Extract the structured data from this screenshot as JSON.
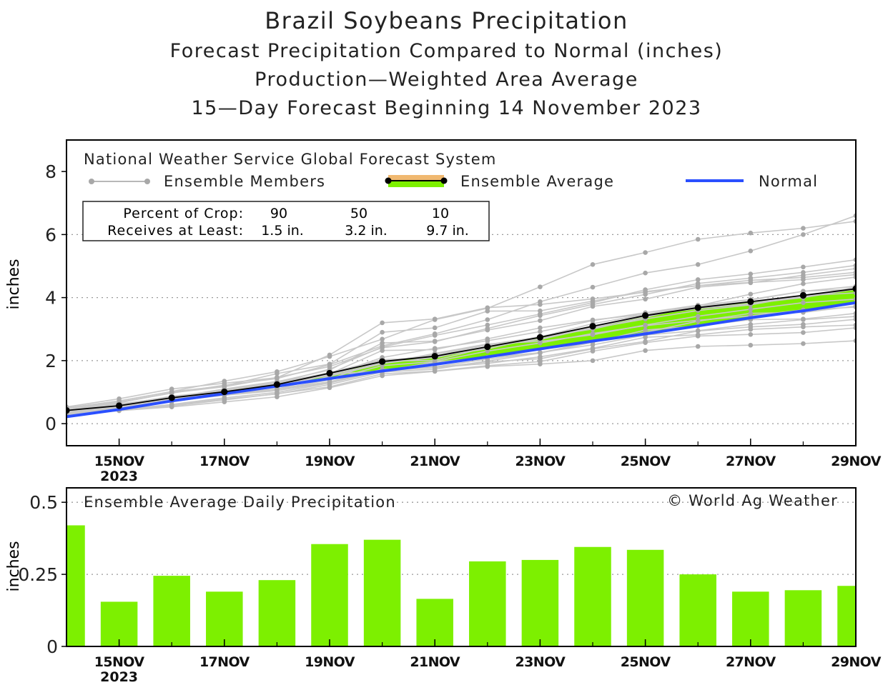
{
  "title": "Brazil Soybeans Precipitation",
  "subtitles": [
    "Forecast Precipitation Compared to Normal (inches)",
    "Production—Weighted Area Average",
    "15—Day Forecast Beginning 14 November 2023"
  ],
  "colors": {
    "member": "#c8c8c8",
    "member_point": "#a8a8a8",
    "average": "#000000",
    "normal": "#2a4fff",
    "above_normal_fill": "#7df000",
    "band": "#f0b870",
    "bar": "#7df000"
  },
  "chart_data": [
    {
      "type": "line",
      "title": "National Weather Service Global Forecast System",
      "ylabel": "inches",
      "ylim": [
        -0.7,
        9
      ],
      "yticks": [
        0,
        2,
        4,
        6,
        8
      ],
      "xlim": [
        14,
        29
      ],
      "x": [
        14,
        15,
        16,
        17,
        18,
        19,
        20,
        21,
        22,
        23,
        24,
        25,
        26,
        27,
        28,
        29
      ],
      "xticks": [
        15,
        17,
        19,
        21,
        23,
        25,
        27,
        29
      ],
      "xtick_labels": [
        "15NOV",
        "17NOV",
        "19NOV",
        "21NOV",
        "23NOV",
        "25NOV",
        "27NOV",
        "29NOV"
      ],
      "xtick_year": "2023",
      "legend": {
        "members_label": "Ensemble Members",
        "average_label": "Ensemble Average",
        "normal_label": "Normal"
      },
      "crop_box": {
        "row1_label": "Percent of Crop:",
        "row1_values": [
          "90",
          "50",
          "10"
        ],
        "row2_label": "Receives at Least:",
        "row2_values": [
          "1.5 in.",
          "3.2 in.",
          "9.7 in."
        ]
      },
      "series": [
        {
          "name": "Ensemble Average",
          "values": [
            0.42,
            0.57,
            0.82,
            1.01,
            1.24,
            1.6,
            1.97,
            2.14,
            2.44,
            2.74,
            3.09,
            3.43,
            3.68,
            3.87,
            4.07,
            4.28
          ]
        },
        {
          "name": "Normal",
          "values": [
            0.22,
            0.45,
            0.72,
            0.95,
            1.19,
            1.43,
            1.67,
            1.88,
            2.12,
            2.37,
            2.62,
            2.85,
            3.1,
            3.36,
            3.58,
            3.84
          ]
        }
      ],
      "members": [
        [
          0.45,
          0.62,
          0.85,
          1.05,
          1.29,
          1.62,
          2.03,
          2.09,
          2.45,
          2.67,
          3.07,
          3.41,
          3.69,
          3.86,
          4.0,
          4.27
        ],
        [
          0.36,
          0.61,
          0.81,
          0.99,
          1.29,
          1.6,
          1.95,
          2.2,
          2.51,
          2.75,
          3.0,
          3.37,
          3.75,
          3.94,
          4.2,
          4.27
        ],
        [
          0.45,
          0.59,
          0.87,
          1.04,
          1.26,
          1.57,
          1.98,
          2.14,
          2.37,
          2.75,
          3.17,
          3.46,
          3.66,
          3.81,
          4.0,
          4.34
        ],
        [
          0.41,
          0.59,
          0.8,
          1.06,
          1.22,
          1.55,
          1.91,
          2.1,
          2.45,
          2.69,
          3.07,
          3.45,
          3.65,
          3.8,
          4.06,
          4.26
        ],
        [
          0.38,
          0.55,
          0.82,
          1.02,
          1.27,
          1.59,
          2.0,
          2.15,
          2.5,
          2.67,
          3.04,
          3.43,
          3.73,
          3.87,
          4.02,
          4.3
        ],
        [
          0.42,
          0.58,
          0.86,
          1.05,
          1.29,
          1.73,
          2.43,
          2.8,
          3.13,
          3.48,
          3.84,
          4.25,
          4.57,
          4.75,
          4.97,
          5.2
        ],
        [
          0.48,
          0.68,
          0.97,
          1.22,
          1.43,
          1.87,
          2.47,
          2.85,
          3.3,
          3.87,
          4.33,
          4.78,
          5.05,
          5.48,
          6.0,
          6.6
        ],
        [
          0.5,
          0.72,
          1.02,
          1.35,
          1.65,
          2.13,
          2.68,
          3.3,
          3.66,
          4.34,
          5.05,
          5.43,
          5.85,
          6.05,
          6.2,
          6.42
        ],
        [
          0.44,
          0.66,
          0.98,
          1.17,
          1.47,
          1.81,
          2.41,
          2.6,
          3.02,
          3.43,
          3.78,
          4.1,
          4.45,
          4.62,
          4.8,
          5.02
        ],
        [
          0.53,
          0.79,
          1.1,
          1.28,
          1.46,
          2.18,
          3.2,
          3.32,
          3.68,
          3.78,
          3.96,
          4.17,
          4.38,
          4.48,
          4.57,
          4.73
        ],
        [
          0.5,
          0.72,
          1.01,
          1.2,
          1.59,
          1.89,
          2.9,
          3.04,
          3.57,
          3.58,
          3.89,
          4.19,
          4.38,
          4.55,
          4.64,
          4.8
        ],
        [
          0.44,
          0.61,
          0.83,
          1.1,
          1.34,
          1.58,
          2.32,
          2.35,
          2.69,
          3.04,
          3.29,
          3.47,
          3.74,
          4.11,
          4.44,
          4.65
        ],
        [
          0.43,
          0.63,
          0.81,
          1.07,
          1.33,
          1.7,
          2.56,
          2.62,
          2.97,
          3.27,
          3.72,
          3.95,
          4.33,
          4.47,
          4.71,
          4.92
        ],
        [
          0.4,
          0.57,
          0.75,
          1.02,
          1.25,
          1.53,
          2.1,
          2.39,
          2.63,
          2.92,
          3.27,
          3.52,
          3.76,
          3.92,
          4.2,
          4.36
        ],
        [
          0.36,
          0.52,
          0.73,
          1.02,
          1.16,
          1.42,
          1.98,
          2.01,
          2.42,
          2.77,
          3.03,
          3.32,
          3.59,
          3.77,
          4.06,
          4.15
        ],
        [
          0.39,
          0.55,
          0.77,
          0.95,
          1.09,
          1.39,
          1.84,
          1.97,
          2.3,
          2.56,
          2.86,
          3.11,
          3.28,
          3.42,
          3.61,
          3.7
        ],
        [
          0.39,
          0.51,
          0.79,
          0.98,
          1.15,
          1.56,
          1.68,
          1.95,
          2.11,
          2.25,
          2.6,
          2.9,
          3.25,
          3.5,
          3.53,
          3.73
        ],
        [
          0.33,
          0.5,
          0.72,
          0.9,
          1.05,
          1.31,
          1.7,
          1.8,
          2.05,
          2.26,
          2.5,
          2.81,
          2.95,
          3.15,
          3.3,
          3.4
        ],
        [
          0.37,
          0.49,
          0.7,
          0.92,
          1.09,
          1.33,
          1.72,
          1.78,
          1.96,
          2.06,
          2.37,
          2.61,
          2.94,
          3.07,
          3.15,
          3.31
        ],
        [
          0.33,
          0.44,
          0.61,
          0.82,
          0.99,
          1.29,
          1.68,
          1.78,
          1.91,
          2.12,
          2.39,
          2.74,
          2.82,
          2.99,
          3.07,
          3.13
        ],
        [
          0.31,
          0.45,
          0.56,
          0.75,
          0.95,
          1.17,
          1.58,
          1.67,
          1.84,
          1.97,
          2.3,
          2.57,
          2.78,
          2.83,
          2.89,
          3.04
        ],
        [
          0.27,
          0.41,
          0.53,
          0.69,
          0.85,
          1.14,
          1.52,
          1.66,
          1.81,
          1.89,
          2.0,
          2.32,
          2.45,
          2.49,
          2.54,
          2.63
        ],
        [
          0.3,
          0.46,
          0.59,
          0.78,
          0.94,
          1.24,
          1.64,
          1.73,
          1.99,
          2.24,
          2.58,
          2.97,
          3.1,
          3.3,
          3.32,
          3.5
        ],
        [
          0.41,
          0.58,
          0.75,
          0.95,
          1.1,
          1.5,
          1.9,
          2.23,
          2.53,
          2.61,
          2.82,
          3.13,
          3.41,
          3.63,
          3.84,
          3.95
        ]
      ]
    },
    {
      "type": "bar",
      "title": "Ensemble Average Daily Precipitation",
      "annotation": "© World Ag Weather",
      "ylabel": "inches",
      "ylim": [
        0,
        0.55
      ],
      "yticks": [
        0,
        0.25,
        0.5
      ],
      "ytick_labels": [
        "0",
        "0.25",
        "0.5"
      ],
      "xlim": [
        14,
        29
      ],
      "x": [
        14,
        15,
        16,
        17,
        18,
        19,
        20,
        21,
        22,
        23,
        24,
        25,
        26,
        27,
        28,
        29
      ],
      "values": [
        0.42,
        0.155,
        0.245,
        0.19,
        0.23,
        0.355,
        0.37,
        0.165,
        0.295,
        0.3,
        0.345,
        0.335,
        0.25,
        0.19,
        0.195,
        0.21
      ],
      "xticks": [
        15,
        17,
        19,
        21,
        23,
        25,
        27,
        29
      ],
      "xtick_labels": [
        "15NOV",
        "17NOV",
        "19NOV",
        "21NOV",
        "23NOV",
        "25NOV",
        "27NOV",
        "29NOV"
      ],
      "xtick_year": "2023"
    }
  ]
}
